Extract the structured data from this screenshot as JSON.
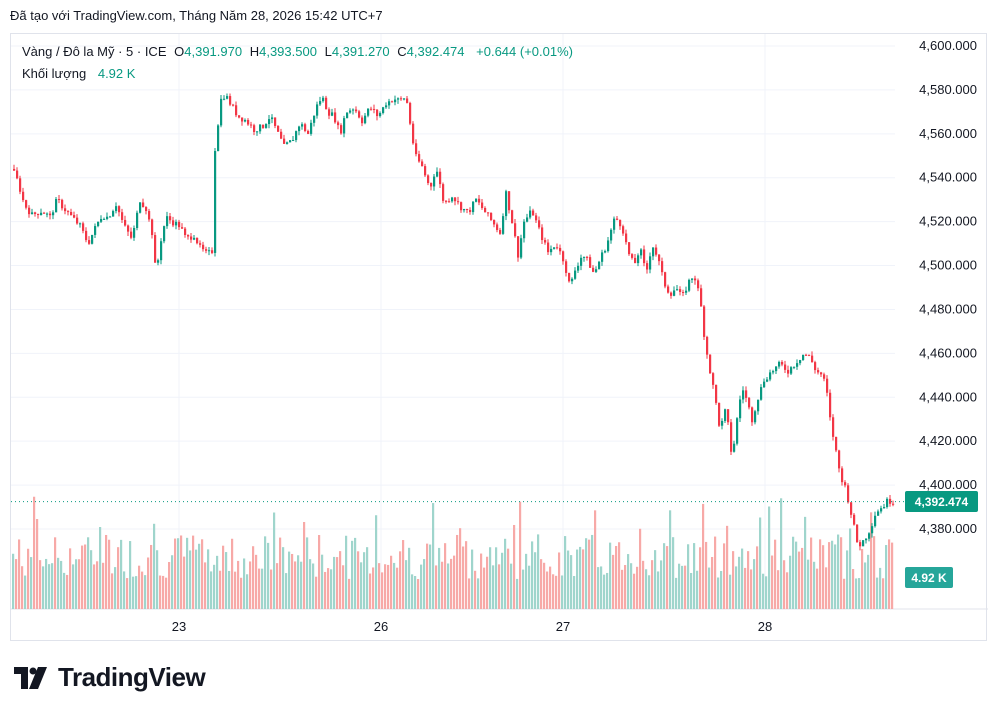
{
  "header": {
    "text": "Đã tạo với TradingView.com, Tháng Năm 28, 2026 15:42 UTC+7"
  },
  "legend": {
    "symbol": "Vàng / Đô la Mỹ · 5 · ICE",
    "o_label": "O",
    "o_value": "4,391.970",
    "h_label": "H",
    "h_value": "4,393.500",
    "l_label": "L",
    "l_value": "4,391.270",
    "c_label": "C",
    "c_value": "4,392.474",
    "change": "+0.644 (+0.01%)"
  },
  "volume_legend": {
    "label": "Khối lượng",
    "value": "4.92 K"
  },
  "badges": {
    "price": "4,392.474",
    "volume": "4.92 K"
  },
  "logo": {
    "text": "TradingView"
  },
  "colors": {
    "up": "#089981",
    "down": "#f23645",
    "vol_up": "#9fd5cc",
    "vol_down": "#f7a9a7",
    "grid": "#f0f3fa"
  },
  "chart_data": {
    "type": "candlestick",
    "instrument": "Vàng / Đô la Mỹ",
    "interval": "5",
    "exchange": "ICE",
    "x_tick_labels": [
      "23",
      "26",
      "27",
      "28"
    ],
    "y_tick_labels": [
      "4,600.000",
      "4,580.000",
      "4,560.000",
      "4,540.000",
      "4,520.000",
      "4,500.000",
      "4,480.000",
      "4,460.000",
      "4,440.000",
      "4,420.000",
      "4,400.000",
      "4,380.000"
    ],
    "ylim": [
      4365,
      4602
    ],
    "grid": true,
    "last_price": 4392.474,
    "close_path": [
      {
        "x": 0,
        "y": 4544
      },
      {
        "x": 6,
        "y": 4538
      },
      {
        "x": 12,
        "y": 4528
      },
      {
        "x": 20,
        "y": 4523
      },
      {
        "x": 30,
        "y": 4525
      },
      {
        "x": 38,
        "y": 4522
      },
      {
        "x": 45,
        "y": 4530
      },
      {
        "x": 52,
        "y": 4526
      },
      {
        "x": 60,
        "y": 4522
      },
      {
        "x": 68,
        "y": 4518
      },
      {
        "x": 76,
        "y": 4510
      },
      {
        "x": 84,
        "y": 4518
      },
      {
        "x": 90,
        "y": 4523
      },
      {
        "x": 96,
        "y": 4522
      },
      {
        "x": 104,
        "y": 4528
      },
      {
        "x": 112,
        "y": 4518
      },
      {
        "x": 120,
        "y": 4512
      },
      {
        "x": 128,
        "y": 4530
      },
      {
        "x": 134,
        "y": 4526
      },
      {
        "x": 140,
        "y": 4515
      },
      {
        "x": 144,
        "y": 4495
      },
      {
        "x": 148,
        "y": 4510
      },
      {
        "x": 154,
        "y": 4522
      },
      {
        "x": 160,
        "y": 4520
      },
      {
        "x": 168,
        "y": 4518
      },
      {
        "x": 174,
        "y": 4512
      },
      {
        "x": 182,
        "y": 4514
      },
      {
        "x": 188,
        "y": 4508
      },
      {
        "x": 195,
        "y": 4505
      },
      {
        "x": 201,
        "y": 4507
      },
      {
        "x": 202,
        "y": 4550
      },
      {
        "x": 205,
        "y": 4560
      },
      {
        "x": 208,
        "y": 4575
      },
      {
        "x": 213,
        "y": 4578
      },
      {
        "x": 218,
        "y": 4574
      },
      {
        "x": 226,
        "y": 4568
      },
      {
        "x": 234,
        "y": 4566
      },
      {
        "x": 242,
        "y": 4562
      },
      {
        "x": 250,
        "y": 4563
      },
      {
        "x": 258,
        "y": 4568
      },
      {
        "x": 266,
        "y": 4560
      },
      {
        "x": 272,
        "y": 4554
      },
      {
        "x": 280,
        "y": 4557
      },
      {
        "x": 288,
        "y": 4565
      },
      {
        "x": 296,
        "y": 4560
      },
      {
        "x": 304,
        "y": 4572
      },
      {
        "x": 310,
        "y": 4577
      },
      {
        "x": 316,
        "y": 4570
      },
      {
        "x": 322,
        "y": 4568
      },
      {
        "x": 328,
        "y": 4560
      },
      {
        "x": 334,
        "y": 4570
      },
      {
        "x": 342,
        "y": 4572
      },
      {
        "x": 350,
        "y": 4566
      },
      {
        "x": 358,
        "y": 4572
      },
      {
        "x": 366,
        "y": 4568
      },
      {
        "x": 374,
        "y": 4574
      },
      {
        "x": 382,
        "y": 4576
      },
      {
        "x": 388,
        "y": 4575
      },
      {
        "x": 394,
        "y": 4577
      },
      {
        "x": 398,
        "y": 4565
      },
      {
        "x": 403,
        "y": 4550
      },
      {
        "x": 410,
        "y": 4545
      },
      {
        "x": 418,
        "y": 4535
      },
      {
        "x": 424,
        "y": 4545
      },
      {
        "x": 432,
        "y": 4528
      },
      {
        "x": 440,
        "y": 4532
      },
      {
        "x": 448,
        "y": 4527
      },
      {
        "x": 456,
        "y": 4524
      },
      {
        "x": 464,
        "y": 4530
      },
      {
        "x": 472,
        "y": 4525
      },
      {
        "x": 480,
        "y": 4520
      },
      {
        "x": 488,
        "y": 4515
      },
      {
        "x": 494,
        "y": 4533
      },
      {
        "x": 500,
        "y": 4520
      },
      {
        "x": 506,
        "y": 4505
      },
      {
        "x": 512,
        "y": 4520
      },
      {
        "x": 520,
        "y": 4525
      },
      {
        "x": 528,
        "y": 4515
      },
      {
        "x": 536,
        "y": 4506
      },
      {
        "x": 544,
        "y": 4510
      },
      {
        "x": 552,
        "y": 4502
      },
      {
        "x": 558,
        "y": 4490
      },
      {
        "x": 563,
        "y": 4498
      },
      {
        "x": 570,
        "y": 4505
      },
      {
        "x": 576,
        "y": 4502
      },
      {
        "x": 582,
        "y": 4496
      },
      {
        "x": 588,
        "y": 4503
      },
      {
        "x": 595,
        "y": 4510
      },
      {
        "x": 603,
        "y": 4522
      },
      {
        "x": 610,
        "y": 4518
      },
      {
        "x": 616,
        "y": 4506
      },
      {
        "x": 622,
        "y": 4500
      },
      {
        "x": 628,
        "y": 4508
      },
      {
        "x": 634,
        "y": 4496
      },
      {
        "x": 640,
        "y": 4510
      },
      {
        "x": 646,
        "y": 4503
      },
      {
        "x": 652,
        "y": 4492
      },
      {
        "x": 658,
        "y": 4487
      },
      {
        "x": 664,
        "y": 4490
      },
      {
        "x": 670,
        "y": 4485
      },
      {
        "x": 676,
        "y": 4492
      },
      {
        "x": 682,
        "y": 4496
      },
      {
        "x": 688,
        "y": 4485
      },
      {
        "x": 693,
        "y": 4465
      },
      {
        "x": 698,
        "y": 4452
      },
      {
        "x": 703,
        "y": 4440
      },
      {
        "x": 708,
        "y": 4425
      },
      {
        "x": 714,
        "y": 4435
      },
      {
        "x": 720,
        "y": 4412
      },
      {
        "x": 725,
        "y": 4430
      },
      {
        "x": 730,
        "y": 4445
      },
      {
        "x": 735,
        "y": 4438
      },
      {
        "x": 740,
        "y": 4430
      },
      {
        "x": 746,
        "y": 4440
      },
      {
        "x": 752,
        "y": 4448
      },
      {
        "x": 760,
        "y": 4452
      },
      {
        "x": 768,
        "y": 4455
      },
      {
        "x": 776,
        "y": 4452
      },
      {
        "x": 784,
        "y": 4456
      },
      {
        "x": 792,
        "y": 4460
      },
      {
        "x": 798,
        "y": 4458
      },
      {
        "x": 804,
        "y": 4452
      },
      {
        "x": 810,
        "y": 4450
      },
      {
        "x": 814,
        "y": 4445
      },
      {
        "x": 818,
        "y": 4430
      },
      {
        "x": 824,
        "y": 4415
      },
      {
        "x": 828,
        "y": 4405
      },
      {
        "x": 834,
        "y": 4398
      },
      {
        "x": 840,
        "y": 4385
      },
      {
        "x": 846,
        "y": 4372
      },
      {
        "x": 852,
        "y": 4375
      },
      {
        "x": 858,
        "y": 4380
      },
      {
        "x": 864,
        "y": 4388
      },
      {
        "x": 870,
        "y": 4390
      },
      {
        "x": 876,
        "y": 4393
      },
      {
        "x": 882,
        "y": 4392.474
      }
    ]
  }
}
